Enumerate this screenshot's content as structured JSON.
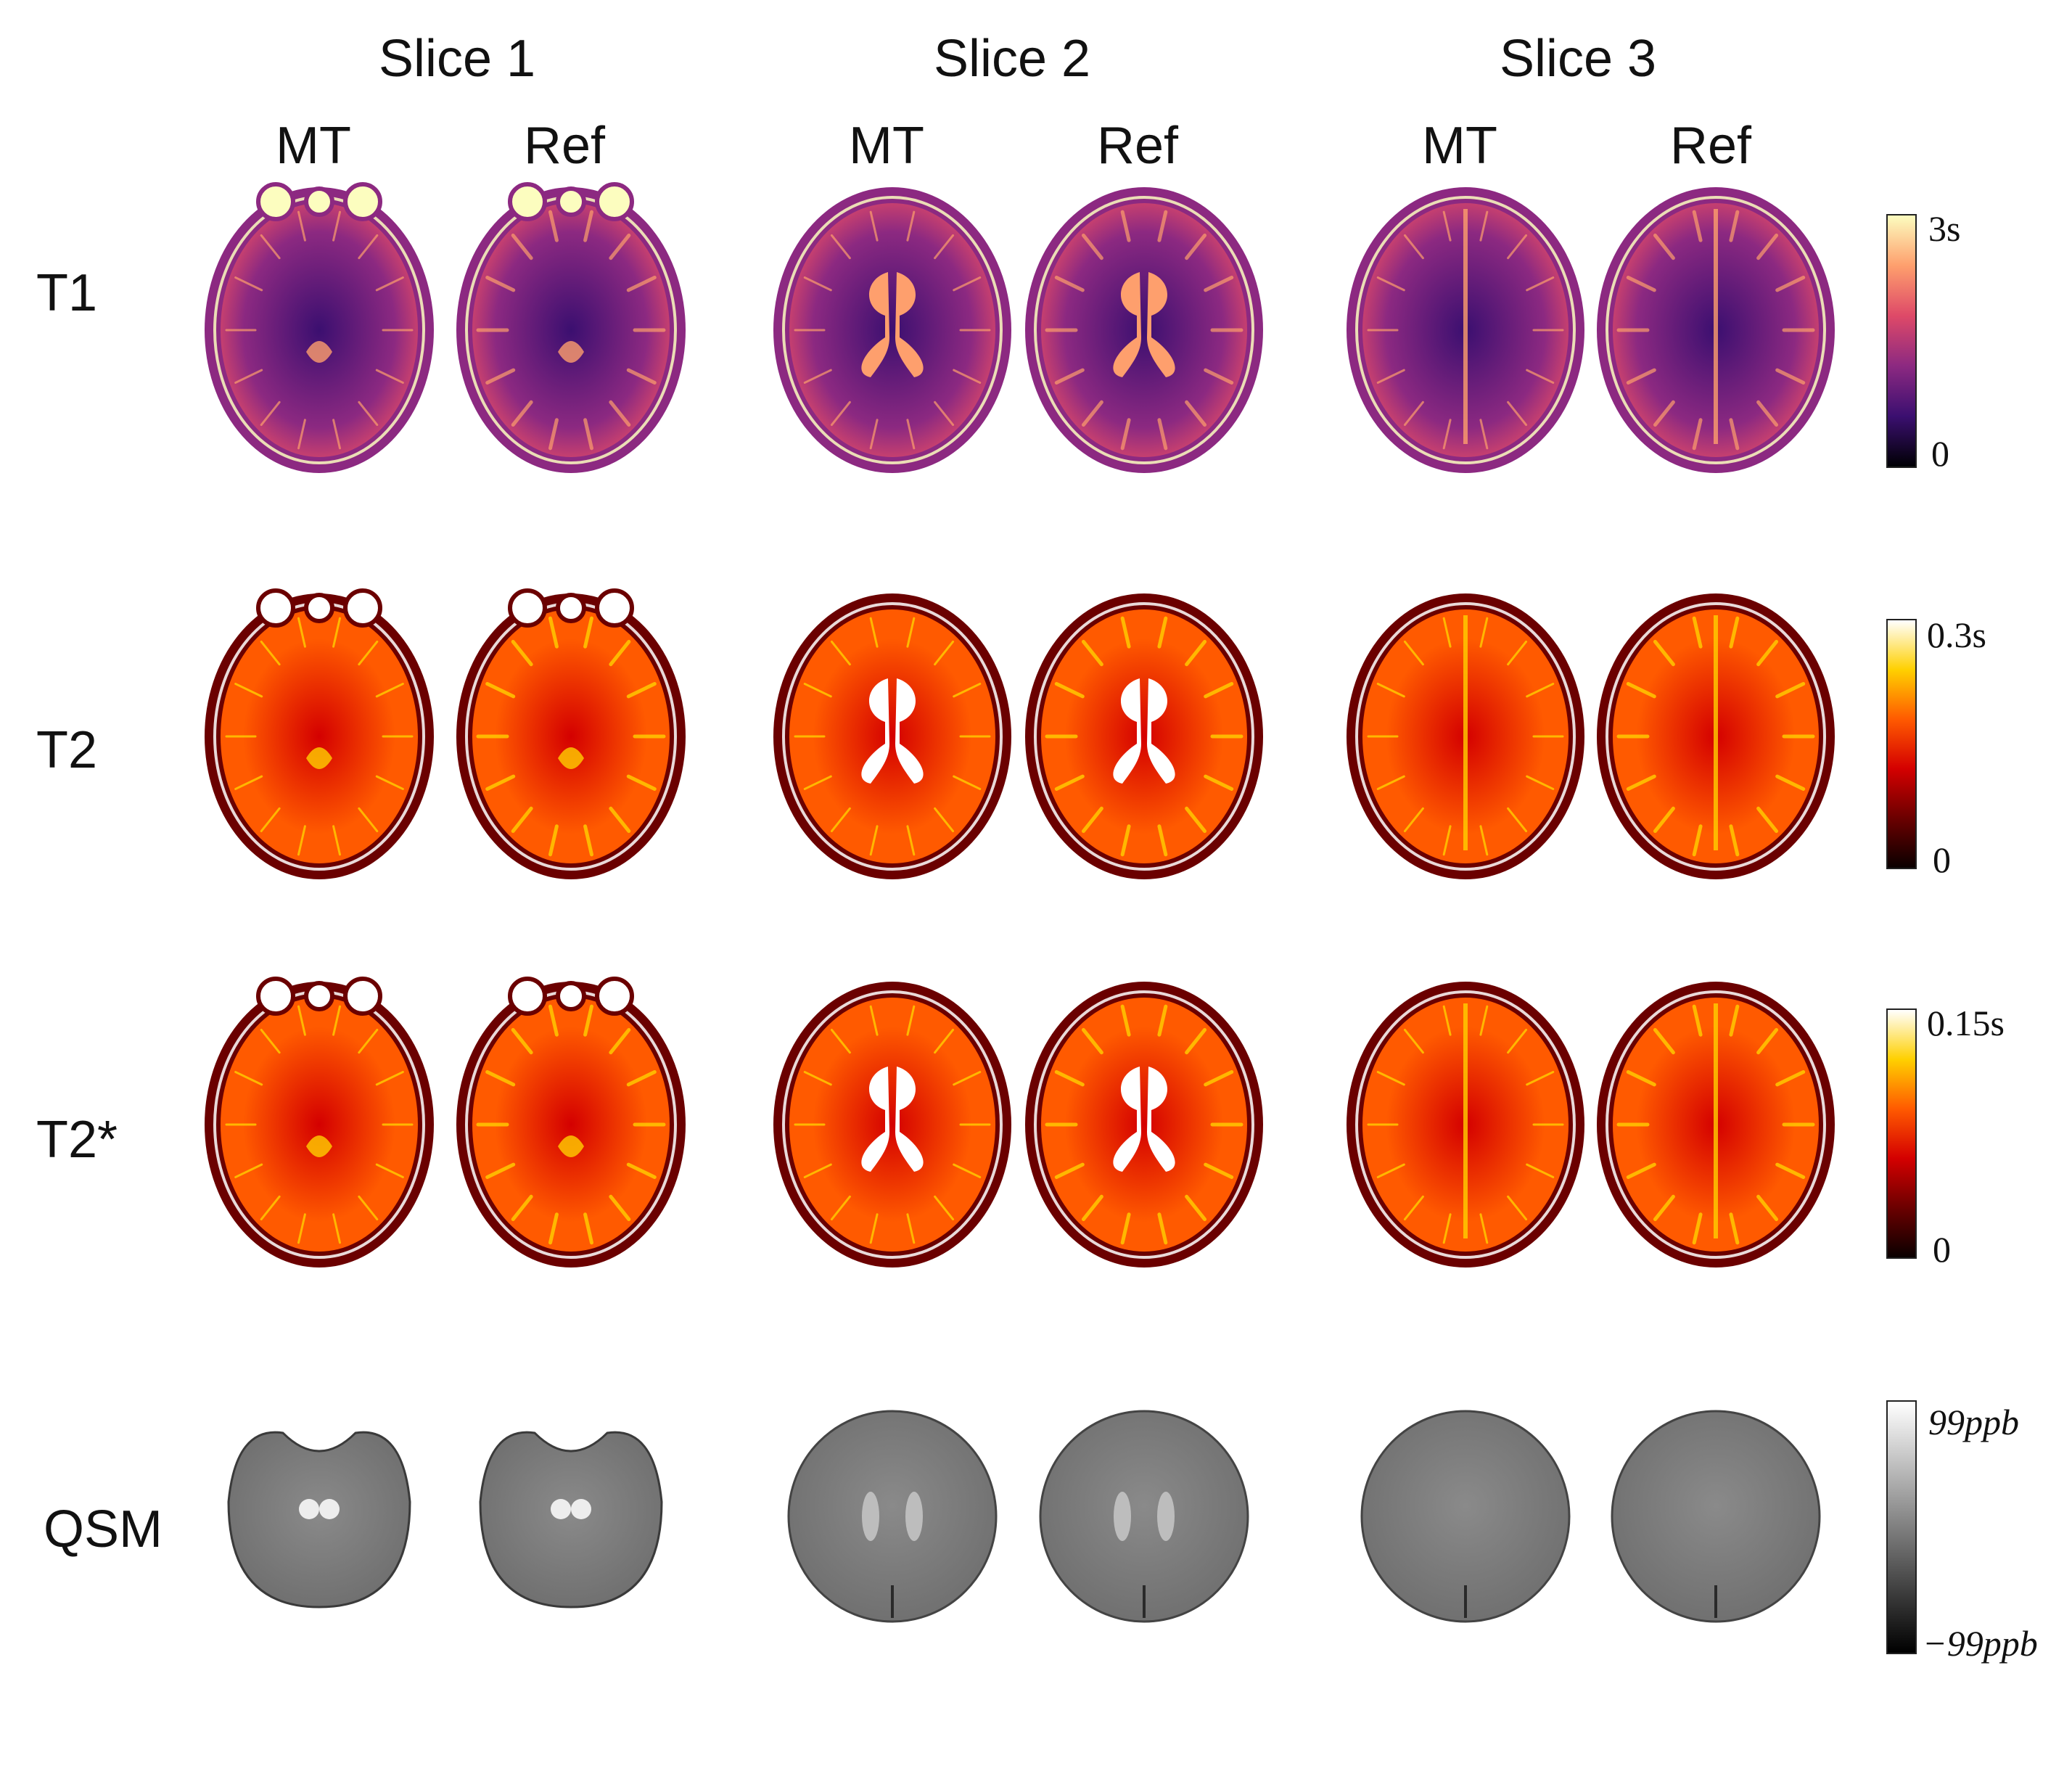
{
  "slices": [
    {
      "label": "Slice 1",
      "columns": [
        "MT",
        "Ref"
      ]
    },
    {
      "label": "Slice 2",
      "columns": [
        "MT",
        "Ref"
      ]
    },
    {
      "label": "Slice 3",
      "columns": [
        "MT",
        "Ref"
      ]
    }
  ],
  "rows": [
    {
      "label": "T1",
      "colormap": "inferno",
      "colorbar": {
        "max": "3s",
        "min": "0"
      }
    },
    {
      "label": "T2",
      "colormap": "hot",
      "colorbar": {
        "max": "0.3s",
        "min": "0"
      }
    },
    {
      "label": "T2*",
      "colormap": "hot",
      "colorbar": {
        "max": "0.15s",
        "min": "0"
      }
    },
    {
      "label": "QSM",
      "colormap": "gray",
      "colorbar": {
        "max": "99ppb",
        "min": "−99ppb"
      }
    }
  ],
  "colors": {
    "inferno": [
      "#000004",
      "#3b0f70",
      "#8c2981",
      "#de4968",
      "#fe9f6d",
      "#fcfdbf"
    ],
    "hot": [
      "#0a0000",
      "#6b0000",
      "#d40000",
      "#ff5a00",
      "#ffd000",
      "#ffffff"
    ],
    "gray": [
      "#000000",
      "#ffffff"
    ]
  }
}
